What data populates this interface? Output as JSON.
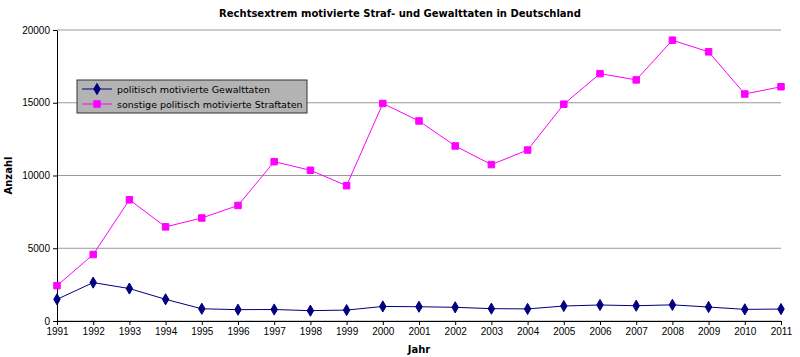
{
  "chart_data": {
    "type": "line",
    "title": "Rechtsextrem motivierte Straf- und Gewalttaten in Deutschland",
    "x_label": "Jahr",
    "y_label": "Anzahl",
    "x": [
      1991,
      1992,
      1993,
      1994,
      1995,
      1996,
      1997,
      1998,
      1999,
      2000,
      2001,
      2002,
      2003,
      2004,
      2005,
      2006,
      2007,
      2008,
      2009,
      2010,
      2011
    ],
    "series": [
      {
        "name": "politisch motivierte Gewalttaten",
        "color": "#000080",
        "marker": "diamond",
        "values": [
          1490,
          2640,
          2230,
          1490,
          840,
          780,
          790,
          710,
          750,
          1000,
          980,
          940,
          850,
          830,
          1030,
          1100,
          1050,
          1110,
          960,
          800,
          820
        ]
      },
      {
        "name": "sonstige politisch motivierte Straftaten",
        "color": "#ff00ff",
        "marker": "square",
        "values": [
          2430,
          4570,
          8330,
          6470,
          7080,
          7940,
          10950,
          10360,
          9300,
          14950,
          13750,
          12030,
          10750,
          11750,
          14900,
          17000,
          16570,
          19300,
          18500,
          15600,
          16100
        ]
      }
    ],
    "xlim": [
      1991,
      2011
    ],
    "xticks": [
      1991,
      1992,
      1993,
      1994,
      1995,
      1996,
      1997,
      1998,
      1999,
      2000,
      2001,
      2002,
      2003,
      2004,
      2005,
      2006,
      2007,
      2008,
      2009,
      2010,
      2011
    ],
    "ylim": [
      0,
      20000
    ],
    "yticks": [
      0,
      5000,
      10000,
      15000,
      20000
    ],
    "grid": true,
    "legend": "upper left"
  }
}
